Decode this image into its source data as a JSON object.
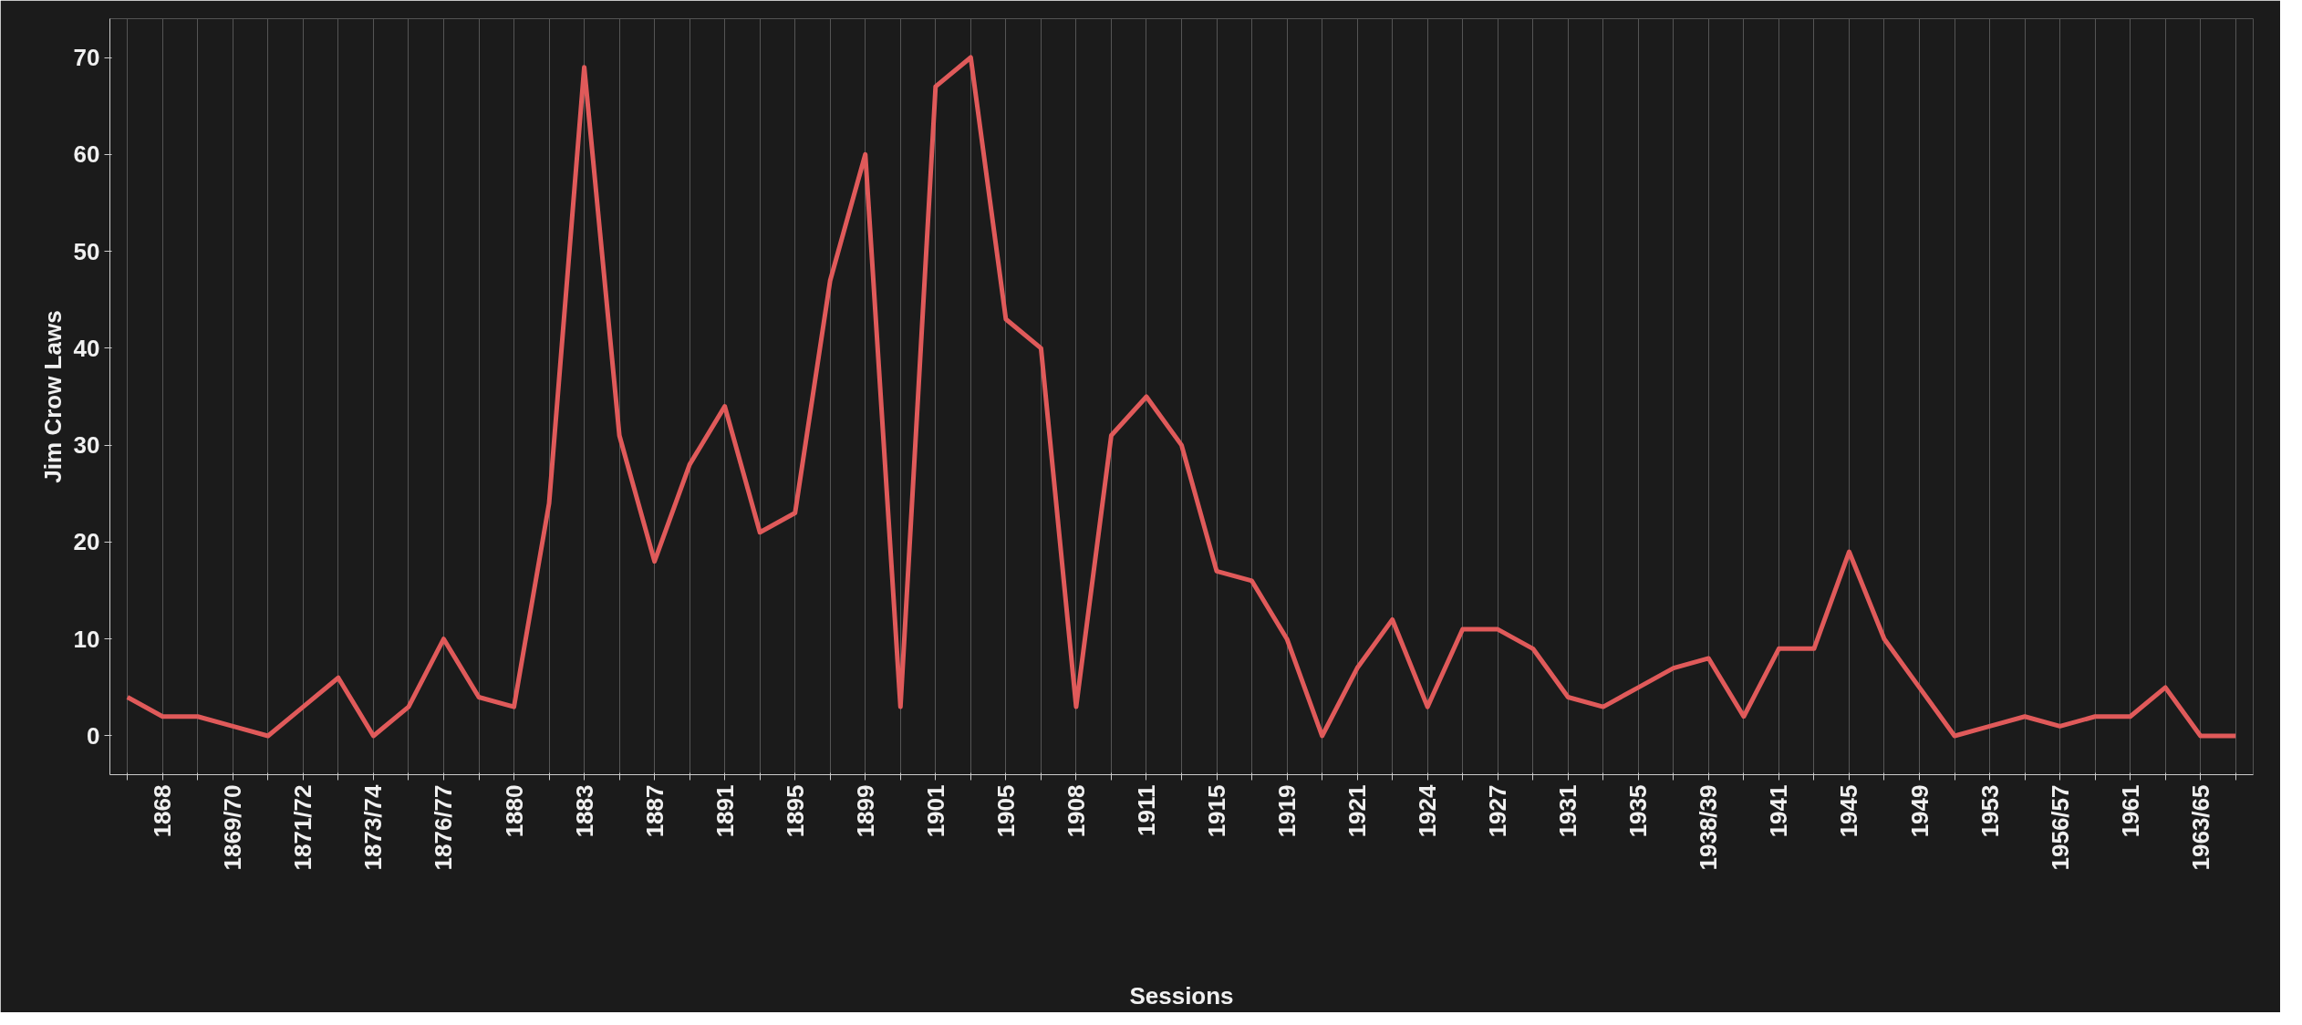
{
  "chart_data": {
    "type": "line",
    "xlabel": "Sessions",
    "ylabel": "Jim Crow Laws",
    "categories": [
      null,
      "1868",
      null,
      "1869/70",
      null,
      "1871/72",
      null,
      "1873/74",
      null,
      "1876/77",
      null,
      "1880",
      null,
      "1883",
      null,
      "1887",
      null,
      "1891",
      null,
      "1895",
      null,
      "1899",
      null,
      "1901",
      null,
      "1905",
      null,
      "1908",
      null,
      "1911",
      null,
      "1915",
      null,
      "1919",
      null,
      "1921",
      null,
      "1924",
      null,
      "1927",
      null,
      "1931",
      null,
      "1935",
      null,
      "1938/39",
      null,
      "1941",
      null,
      "1945",
      null,
      "1949",
      null,
      "1953",
      null,
      "1956/57",
      null,
      "1961",
      null,
      "1963/65",
      null
    ],
    "series": [
      {
        "color": "#e05a5a",
        "values": [
          4,
          2,
          2,
          1,
          0,
          3,
          6,
          0,
          3,
          10,
          4,
          3,
          24,
          69,
          31,
          18,
          28,
          34,
          21,
          23,
          47,
          60,
          3,
          67,
          70,
          43,
          40,
          3,
          31,
          35,
          30,
          17,
          16,
          10,
          0,
          7,
          12,
          3,
          11,
          11,
          9,
          4,
          3,
          5,
          7,
          8,
          2,
          9,
          9,
          19,
          10,
          5,
          0,
          1,
          2,
          1,
          2,
          2,
          5,
          0,
          0
        ]
      }
    ],
    "ylim": [
      -4,
      74
    ],
    "yticks": [
      0,
      10,
      20,
      30,
      40,
      50,
      60,
      70
    ],
    "grid": "x",
    "marker": "none",
    "line_style": "solid"
  }
}
